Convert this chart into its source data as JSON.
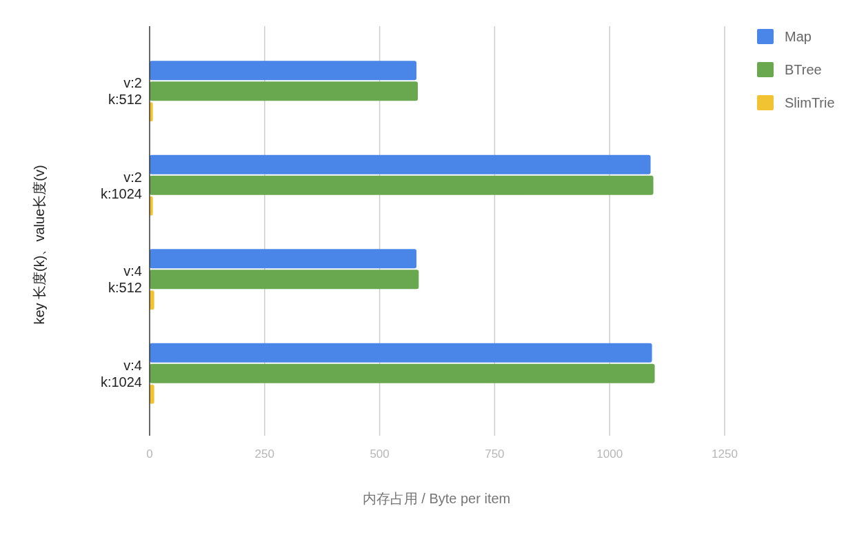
{
  "chart_data": {
    "type": "bar",
    "orientation": "horizontal",
    "categories": [
      "v:2\nk:512",
      "v:2\nk:1024",
      "v:4\nk:512",
      "v:4\nk:1024"
    ],
    "series": [
      {
        "name": "Map",
        "color": "#4a86e8",
        "values": [
          580,
          1089,
          580,
          1092
        ]
      },
      {
        "name": "BTree",
        "color": "#6aa84f",
        "values": [
          583,
          1095,
          585,
          1098
        ]
      },
      {
        "name": "SlimTrie",
        "color": "#f1c232",
        "values": [
          7,
          7,
          10,
          10
        ]
      }
    ],
    "xlim": [
      0,
      1250
    ],
    "xticks": [
      0,
      250,
      500,
      750,
      1000,
      1250
    ],
    "xlabel": "内存占用 / Byte per item",
    "ylabel": "key 长度(k)、value长度(v)",
    "grid": "x",
    "legend": "top right"
  }
}
